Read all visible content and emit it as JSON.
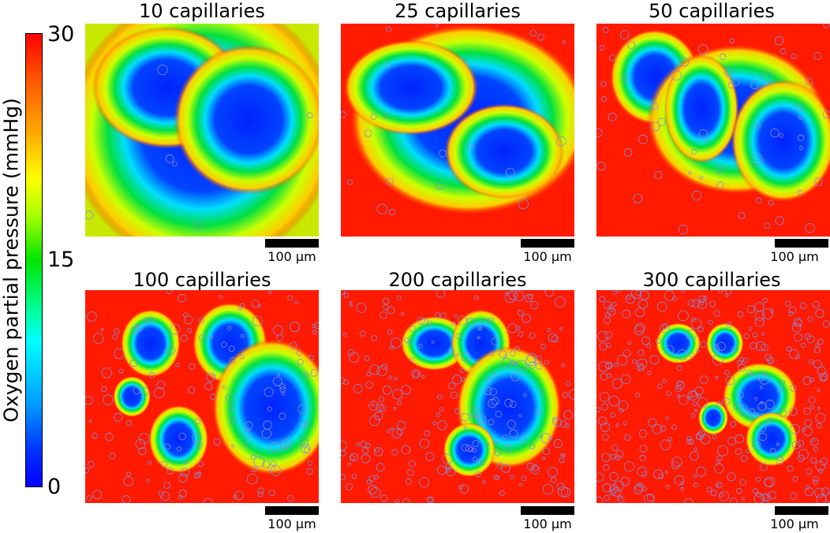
{
  "colorbar": {
    "label": "Oxygen partial pressure (mmHg)",
    "ticks": [
      "30",
      "15",
      "0"
    ],
    "colormap": "jet",
    "range": [
      0,
      30
    ]
  },
  "panels": [
    {
      "title": "10 capillaries",
      "scale_label": "100 μm",
      "capillaries": 10
    },
    {
      "title": "25 capillaries",
      "scale_label": "100 μm",
      "capillaries": 25
    },
    {
      "title": "50 capillaries",
      "scale_label": "100 μm",
      "capillaries": 50
    },
    {
      "title": "100 capillaries",
      "scale_label": "100 μm",
      "capillaries": 100
    },
    {
      "title": "200 capillaries",
      "scale_label": "100 μm",
      "capillaries": 200
    },
    {
      "title": "300 capillaries",
      "scale_label": "100 μm",
      "capillaries": 300
    }
  ],
  "colors": {
    "high": "#ff1a00",
    "mid": "#00dd20",
    "low": "#0022ff",
    "vessel_outline": "#8a8ad8"
  }
}
